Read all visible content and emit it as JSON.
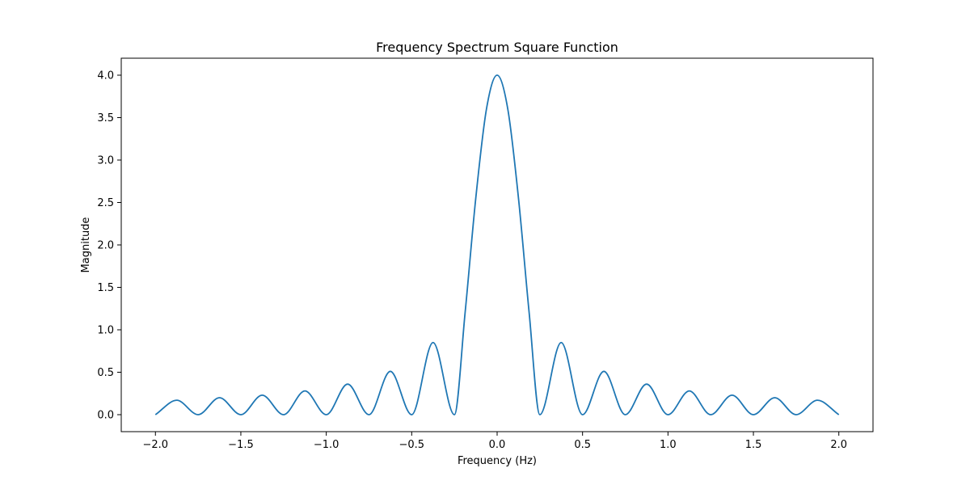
{
  "chart_data": {
    "type": "line",
    "title": "Frequency Spectrum Square Function",
    "xlabel": "Frequency (Hz)",
    "ylabel": "Magnitude",
    "xlim": [
      -2.2,
      2.2
    ],
    "ylim": [
      -0.2,
      4.2
    ],
    "xticks": [
      -2.0,
      -1.5,
      -1.0,
      -0.5,
      0.0,
      0.5,
      1.0,
      1.5,
      2.0
    ],
    "xtick_labels": [
      "−2.0",
      "−1.5",
      "−1.0",
      "−0.5",
      "0.0",
      "0.5",
      "1.0",
      "1.5",
      "2.0"
    ],
    "yticks": [
      0.0,
      0.5,
      1.0,
      1.5,
      2.0,
      2.5,
      3.0,
      3.5,
      4.0
    ],
    "ytick_labels": [
      "0.0",
      "0.5",
      "1.0",
      "1.5",
      "2.0",
      "2.5",
      "3.0",
      "3.5",
      "4.0"
    ],
    "grid": false,
    "series": [
      {
        "color": "#1f77b4",
        "x": [
          -2.0,
          -1.875,
          -1.75,
          -1.625,
          -1.5,
          -1.375,
          -1.25,
          -1.125,
          -1.0,
          -0.875,
          -0.75,
          -0.625,
          -0.5,
          -0.375,
          -0.25,
          -0.1875,
          -0.125,
          -0.0625,
          0.0,
          0.0625,
          0.125,
          0.1875,
          0.25,
          0.375,
          0.5,
          0.625,
          0.75,
          0.875,
          1.0,
          1.125,
          1.25,
          1.375,
          1.5,
          1.625,
          1.75,
          1.875,
          2.0
        ],
        "y": [
          0.0,
          0.17,
          0.0,
          0.2,
          0.0,
          0.23,
          0.0,
          0.28,
          0.0,
          0.36,
          0.0,
          0.51,
          0.0,
          0.85,
          0.0,
          1.2,
          2.55,
          3.6,
          4.0,
          3.6,
          2.55,
          1.2,
          0.0,
          0.85,
          0.0,
          0.51,
          0.0,
          0.36,
          0.0,
          0.28,
          0.0,
          0.23,
          0.0,
          0.2,
          0.0,
          0.17,
          0.0
        ]
      }
    ]
  }
}
